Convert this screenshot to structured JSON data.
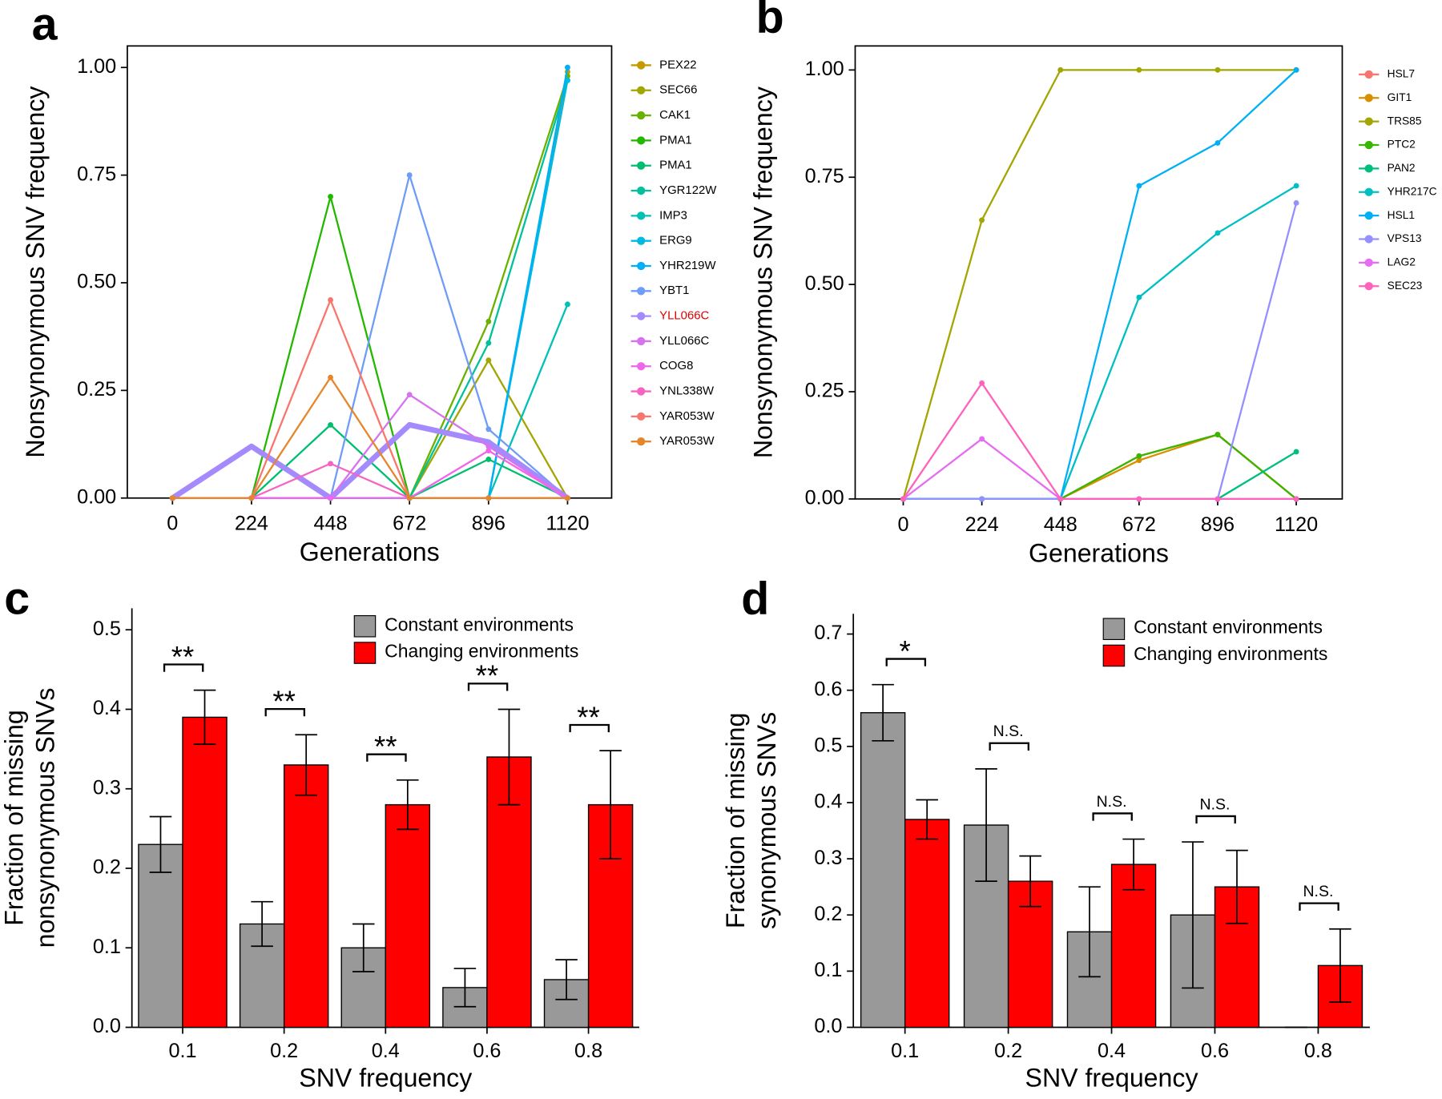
{
  "chart_data": [
    {
      "type": "line",
      "panel": "a",
      "xlabel": "Generations",
      "ylabel": [
        "Nonsynonymous SNV frequency"
      ],
      "x": [
        0,
        224,
        448,
        672,
        896,
        1120
      ],
      "xlim": [
        -128,
        1245
      ],
      "ylim": [
        0,
        1.05
      ],
      "xticks": [
        0,
        224,
        448,
        672,
        896,
        1120
      ],
      "yticks": [
        {
          "value": 0,
          "label": "0.00"
        },
        {
          "value": 0.25,
          "label": "0.25"
        },
        {
          "value": 0.5,
          "label": "0.50"
        },
        {
          "value": 0.75,
          "label": "0.75"
        },
        {
          "value": 1,
          "label": "1.00"
        }
      ],
      "series": [
        {
          "name": "PEX22",
          "color": "#c49a00",
          "values": [
            0,
            0,
            0,
            0,
            0,
            0.99
          ]
        },
        {
          "name": "SEC66",
          "color": "#a3a500",
          "values": [
            0,
            0,
            0,
            0,
            0.32,
            0
          ]
        },
        {
          "name": "CAK1",
          "color": "#6bb100",
          "values": [
            0,
            0,
            0,
            0,
            0.41,
            0.98
          ]
        },
        {
          "name": "PMA1",
          "color": "#24b700",
          "values": [
            0,
            0,
            0.7,
            0,
            0,
            0
          ]
        },
        {
          "name": "PMA1",
          "color": "#00be70",
          "values": [
            0,
            0,
            0.17,
            0,
            0.09,
            0
          ]
        },
        {
          "name": "YGR122W",
          "color": "#00c19a",
          "values": [
            0,
            0,
            0,
            0,
            0.36,
            0.97
          ]
        },
        {
          "name": "IMP3",
          "color": "#00c0b8",
          "values": [
            0,
            0,
            0,
            0,
            0,
            0.45
          ]
        },
        {
          "name": "ERG9",
          "color": "#00bae0",
          "values": [
            0,
            0,
            0,
            0,
            0,
            0.97
          ]
        },
        {
          "name": "YHR219W",
          "color": "#00b0f6",
          "values": [
            0,
            0,
            0,
            0,
            0,
            1
          ]
        },
        {
          "name": "YBT1",
          "color": "#6e9cf6",
          "values": [
            0,
            0,
            0,
            0.75,
            0.16,
            0
          ]
        },
        {
          "name": "YLL066C",
          "color": "#a58afe",
          "label_color": "#e00000",
          "line_width": 6,
          "values": [
            0,
            0.12,
            0,
            0.17,
            0.13,
            0
          ]
        },
        {
          "name": "YLL066C",
          "color": "#d674f0",
          "values": [
            0,
            0,
            0,
            0.24,
            0.12,
            0
          ]
        },
        {
          "name": "COG8",
          "color": "#f066ea",
          "values": [
            0,
            0,
            0,
            0,
            0.11,
            0
          ]
        },
        {
          "name": "YNL338W",
          "color": "#f564c3",
          "values": [
            0,
            0,
            0.08,
            0,
            0,
            0
          ]
        },
        {
          "name": "YAR053W",
          "color": "#f8766d",
          "values": [
            0,
            0,
            0.46,
            0,
            0,
            0
          ]
        },
        {
          "name": "YAR053W",
          "color": "#e6862a",
          "values": [
            0,
            0,
            0.28,
            0,
            0,
            0
          ]
        }
      ]
    },
    {
      "type": "line",
      "panel": "b",
      "xlabel": "Generations",
      "ylabel": [
        "Nonsynonymous SNV frequency"
      ],
      "x": [
        0,
        224,
        448,
        672,
        896,
        1120
      ],
      "xlim": [
        -137,
        1251
      ],
      "ylim": [
        0,
        1.056
      ],
      "xticks": [
        0,
        224,
        448,
        672,
        896,
        1120
      ],
      "yticks": [
        {
          "value": 0,
          "label": "0.00"
        },
        {
          "value": 0.25,
          "label": "0.25"
        },
        {
          "value": 0.5,
          "label": "0.50"
        },
        {
          "value": 0.75,
          "label": "0.75"
        },
        {
          "value": 1,
          "label": "1.00"
        }
      ],
      "series": [
        {
          "name": "HSL7",
          "color": "#f8766d",
          "values": [
            0,
            0,
            0,
            0.1,
            0.15,
            0
          ]
        },
        {
          "name": "GIT1",
          "color": "#d89000",
          "values": [
            0,
            0,
            0,
            0.09,
            0.15,
            0
          ]
        },
        {
          "name": "TRS85",
          "color": "#a3a500",
          "values": [
            0,
            0.65,
            1,
            1,
            1,
            1
          ]
        },
        {
          "name": "PTC2",
          "color": "#39b600",
          "values": [
            0,
            0,
            0,
            0.1,
            0.15,
            0
          ]
        },
        {
          "name": "PAN2",
          "color": "#00bf7d",
          "values": [
            0,
            0,
            0,
            0,
            0,
            0.11
          ]
        },
        {
          "name": "YHR217C",
          "color": "#00bfc4",
          "values": [
            0,
            0,
            0,
            0.47,
            0.62,
            0.73
          ]
        },
        {
          "name": "HSL1",
          "color": "#00b0f6",
          "values": [
            0,
            0,
            0,
            0.73,
            0.83,
            1
          ]
        },
        {
          "name": "VPS13",
          "color": "#9590ff",
          "values": [
            0,
            0,
            0,
            0,
            0,
            0.69
          ]
        },
        {
          "name": "LAG2",
          "color": "#e76bf3",
          "values": [
            0,
            0.14,
            0,
            0,
            0,
            0
          ]
        },
        {
          "name": "SEC23",
          "color": "#ff62bc",
          "values": [
            0,
            0.27,
            0,
            0,
            0,
            0
          ]
        }
      ]
    },
    {
      "type": "bar",
      "panel": "c",
      "xlabel": "SNV frequency",
      "ylabel": [
        "Fraction of missing",
        "nonsynonymous SNVs"
      ],
      "categories": [
        "0.1",
        "0.2",
        "0.4",
        "0.6",
        "0.8"
      ],
      "ylim": [
        0,
        0.527
      ],
      "yticks": [
        {
          "value": 0,
          "label": "0.0"
        },
        0.1,
        0.2,
        0.3,
        0.4,
        0.5
      ],
      "series": [
        {
          "name": "Constant environments",
          "color": "#999999",
          "values": [
            0.23,
            0.13,
            0.1,
            0.05,
            0.06
          ],
          "errors": [
            0.035,
            0.028,
            0.03,
            0.024,
            0.025
          ]
        },
        {
          "name": "Changing environments",
          "color": "#ff0000",
          "values": [
            0.39,
            0.33,
            0.28,
            0.34,
            0.28
          ],
          "errors": [
            0.034,
            0.038,
            0.031,
            0.06,
            0.068
          ]
        }
      ],
      "annotations": [
        "**",
        "**",
        "**",
        "**",
        "**"
      ]
    },
    {
      "type": "bar",
      "panel": "d",
      "xlabel": "SNV frequency",
      "ylabel": [
        "Fraction of missing",
        "synonymous SNVs"
      ],
      "categories": [
        "0.1",
        "0.2",
        "0.4",
        "0.6",
        "0.8"
      ],
      "ylim": [
        0,
        0.736
      ],
      "yticks": [
        {
          "value": 0,
          "label": "0.0"
        },
        0.1,
        0.2,
        0.3,
        0.4,
        0.5,
        0.6,
        0.7
      ],
      "series": [
        {
          "name": "Constant environments",
          "color": "#999999",
          "values": [
            0.56,
            0.36,
            0.17,
            0.2,
            0
          ],
          "errors": [
            0.05,
            0.1,
            0.08,
            0.13,
            0
          ]
        },
        {
          "name": "Changing environments",
          "color": "#ff0000",
          "values": [
            0.37,
            0.26,
            0.29,
            0.25,
            0.11
          ],
          "errors": [
            0.035,
            0.045,
            0.045,
            0.065,
            0.065
          ]
        }
      ],
      "annotations": [
        "*",
        "N.S.",
        "N.S.",
        "N.S.",
        "N.S."
      ]
    }
  ]
}
